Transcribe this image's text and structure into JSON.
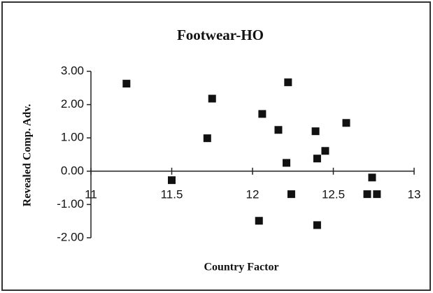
{
  "chart_data": {
    "type": "scatter",
    "title": "Footwear-HO",
    "x_label": "Country Factor",
    "y_label": "Revealed Comp. Adv.",
    "color": "#111111",
    "x": [
      11.22,
      11.75,
      11.72,
      11.5,
      12.06,
      12.04,
      12.16,
      12.22,
      12.21,
      12.24,
      12.39,
      12.4,
      12.4,
      12.45,
      12.58,
      12.74,
      12.71,
      12.77
    ],
    "values": [
      2.63,
      2.18,
      0.99,
      -0.27,
      1.72,
      -1.49,
      1.24,
      2.67,
      0.25,
      -0.69,
      1.2,
      0.38,
      -1.62,
      0.61,
      1.45,
      -0.19,
      -0.69,
      -0.69
    ],
    "xlim": [
      11,
      13
    ],
    "xticks": [
      11,
      11.5,
      12,
      12.5,
      13
    ],
    "ylim": [
      -2,
      3
    ],
    "yticks": [
      {
        "value": -2,
        "label": "-2.00"
      },
      {
        "value": -1,
        "label": "-1.00"
      },
      {
        "value": 0,
        "label": "0.00"
      },
      {
        "value": 1,
        "label": "1.00"
      },
      {
        "value": 2,
        "label": "2.00"
      },
      {
        "value": 3,
        "label": "3.00"
      }
    ],
    "grid": false
  }
}
